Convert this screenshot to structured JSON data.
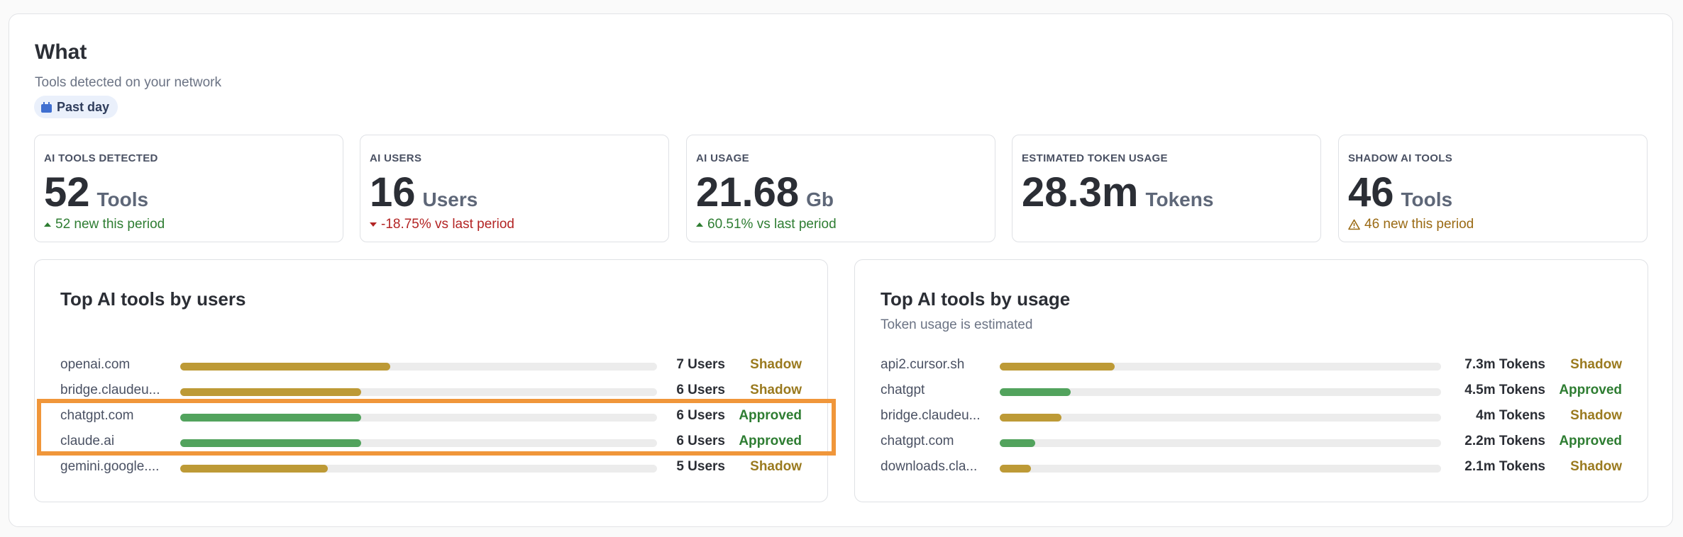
{
  "header": {
    "title": "What",
    "subtitle": "Tools detected on your network",
    "period_label": "Past day",
    "period_icon": "calendar-icon"
  },
  "stats": [
    {
      "label": "AI TOOLS DETECTED",
      "value": "52",
      "unit": "Tools",
      "delta": "52 new this period",
      "trend": "up"
    },
    {
      "label": "AI USERS",
      "value": "16",
      "unit": "Users",
      "delta": "-18.75% vs last period",
      "trend": "down"
    },
    {
      "label": "AI USAGE",
      "value": "21.68",
      "unit": "Gb",
      "delta": "60.51% vs last period",
      "trend": "up"
    },
    {
      "label": "ESTIMATED TOKEN USAGE",
      "value": "28.3m",
      "unit": "Tokens",
      "delta": "",
      "trend": "none"
    },
    {
      "label": "SHADOW AI TOOLS",
      "value": "46",
      "unit": "Tools",
      "delta": "46 new this period",
      "trend": "warning"
    }
  ],
  "by_users": {
    "title": "Top AI tools by users",
    "rows": [
      {
        "name": "openai.com",
        "count": "7 Users",
        "status": "Shadow",
        "fraction": 0.44
      },
      {
        "name": "bridge.claudeu...",
        "count": "6 Users",
        "status": "Shadow",
        "fraction": 0.38
      },
      {
        "name": "chatgpt.com",
        "count": "6 Users",
        "status": "Approved",
        "fraction": 0.38
      },
      {
        "name": "claude.ai",
        "count": "6 Users",
        "status": "Approved",
        "fraction": 0.38
      },
      {
        "name": "gemini.google....",
        "count": "5 Users",
        "status": "Shadow",
        "fraction": 0.31
      }
    ]
  },
  "by_usage": {
    "title": "Top AI tools by usage",
    "subtitle": "Token usage is estimated",
    "rows": [
      {
        "name": "api2.cursor.sh",
        "count": "7.3m Tokens",
        "status": "Shadow",
        "fraction": 0.26
      },
      {
        "name": "chatgpt",
        "count": "4.5m Tokens",
        "status": "Approved",
        "fraction": 0.16
      },
      {
        "name": "bridge.claudeu...",
        "count": "4m Tokens",
        "status": "Shadow",
        "fraction": 0.14
      },
      {
        "name": "chatgpt.com",
        "count": "2.2m Tokens",
        "status": "Approved",
        "fraction": 0.08
      },
      {
        "name": "downloads.cla...",
        "count": "2.1m Tokens",
        "status": "Shadow",
        "fraction": 0.07
      }
    ]
  },
  "colors": {
    "shadow": "#bd9a36",
    "approved": "#52a35d",
    "highlight": "#f0963a"
  }
}
